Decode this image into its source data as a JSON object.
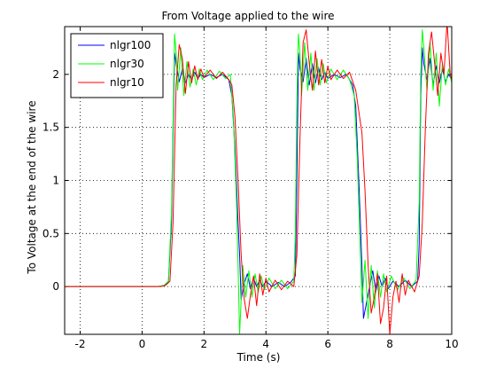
{
  "chart_data": {
    "type": "line",
    "title": "From Voltage applied to the wire",
    "xlabel": "Time (s)",
    "ylabel": "To Voltage at the end of the wire",
    "xlim": [
      -2.5,
      10
    ],
    "ylim": [
      -0.45,
      2.45
    ],
    "xticks": [
      -2,
      0,
      2,
      4,
      6,
      8,
      10
    ],
    "xtick_labels": [
      "-2",
      "0",
      "2",
      "4",
      "6",
      "8",
      "10"
    ],
    "yticks": [
      0,
      0.5,
      1,
      1.5,
      2
    ],
    "ytick_labels": [
      "0",
      "0.5",
      "1",
      "1.5",
      "2"
    ],
    "grid": true,
    "legend_position": "top-left",
    "series": [
      {
        "name": "nlgr100",
        "color": "#0000ff",
        "points": [
          [
            -2.5,
            0
          ],
          [
            0.5,
            0
          ],
          [
            0.7,
            0.01
          ],
          [
            0.85,
            0.04
          ],
          [
            0.95,
            0.6
          ],
          [
            1.05,
            2.2
          ],
          [
            1.1,
            2.1
          ],
          [
            1.2,
            1.93
          ],
          [
            1.3,
            2.05
          ],
          [
            1.4,
            1.92
          ],
          [
            1.5,
            2.0
          ],
          [
            1.6,
            1.95
          ],
          [
            1.7,
            2.02
          ],
          [
            1.8,
            1.96
          ],
          [
            1.9,
            2.0
          ],
          [
            2.0,
            1.97
          ],
          [
            2.2,
            2.0
          ],
          [
            2.4,
            1.97
          ],
          [
            2.6,
            2.0
          ],
          [
            2.8,
            1.95
          ],
          [
            2.9,
            1.8
          ],
          [
            3.0,
            1.3
          ],
          [
            3.1,
            0.6
          ],
          [
            3.15,
            0.3
          ],
          [
            3.2,
            -0.12
          ],
          [
            3.3,
            0.03
          ],
          [
            3.4,
            0.12
          ],
          [
            3.5,
            -0.02
          ],
          [
            3.6,
            0.08
          ],
          [
            3.7,
            0.0
          ],
          [
            3.8,
            0.06
          ],
          [
            3.9,
            0.0
          ],
          [
            4.0,
            0.05
          ],
          [
            4.2,
            0.0
          ],
          [
            4.4,
            0.04
          ],
          [
            4.6,
            0.0
          ],
          [
            4.8,
            0.04
          ],
          [
            4.95,
            0.1
          ],
          [
            5.0,
            1.0
          ],
          [
            5.05,
            2.2
          ],
          [
            5.1,
            2.05
          ],
          [
            5.2,
            1.93
          ],
          [
            5.3,
            2.15
          ],
          [
            5.4,
            1.9
          ],
          [
            5.5,
            2.1
          ],
          [
            5.6,
            1.92
          ],
          [
            5.7,
            2.06
          ],
          [
            5.8,
            1.95
          ],
          [
            5.9,
            2.02
          ],
          [
            6.0,
            1.96
          ],
          [
            6.2,
            2.0
          ],
          [
            6.4,
            1.97
          ],
          [
            6.6,
            2.0
          ],
          [
            6.8,
            1.9
          ],
          [
            6.9,
            1.7
          ],
          [
            7.0,
            1.0
          ],
          [
            7.1,
            0.2
          ],
          [
            7.15,
            -0.3
          ],
          [
            7.25,
            -0.15
          ],
          [
            7.35,
            0.0
          ],
          [
            7.45,
            0.15
          ],
          [
            7.55,
            -0.05
          ],
          [
            7.65,
            0.1
          ],
          [
            7.75,
            0.0
          ],
          [
            7.85,
            0.08
          ],
          [
            7.95,
            -0.02
          ],
          [
            8.1,
            0.05
          ],
          [
            8.3,
            0.0
          ],
          [
            8.5,
            0.06
          ],
          [
            8.7,
            0.0
          ],
          [
            8.9,
            0.05
          ],
          [
            8.95,
            0.4
          ],
          [
            9.0,
            1.8
          ],
          [
            9.05,
            2.25
          ],
          [
            9.1,
            2.1
          ],
          [
            9.2,
            1.95
          ],
          [
            9.3,
            2.15
          ],
          [
            9.4,
            1.9
          ],
          [
            9.5,
            2.08
          ],
          [
            9.6,
            1.92
          ],
          [
            9.7,
            2.05
          ],
          [
            9.8,
            1.93
          ],
          [
            9.9,
            2.0
          ],
          [
            10.0,
            1.95
          ]
        ]
      },
      {
        "name": "nlgr30",
        "color": "#00ff00",
        "points": [
          [
            -2.5,
            0
          ],
          [
            0.5,
            0
          ],
          [
            0.7,
            0.01
          ],
          [
            0.85,
            0.05
          ],
          [
            0.95,
            0.7
          ],
          [
            1.05,
            2.38
          ],
          [
            1.1,
            2.2
          ],
          [
            1.15,
            1.85
          ],
          [
            1.25,
            2.25
          ],
          [
            1.35,
            1.8
          ],
          [
            1.45,
            2.12
          ],
          [
            1.55,
            1.88
          ],
          [
            1.65,
            2.05
          ],
          [
            1.75,
            1.9
          ],
          [
            1.85,
            2.05
          ],
          [
            1.95,
            1.95
          ],
          [
            2.1,
            2.04
          ],
          [
            2.3,
            1.95
          ],
          [
            2.5,
            2.03
          ],
          [
            2.7,
            1.96
          ],
          [
            2.85,
            2.0
          ],
          [
            2.95,
            1.6
          ],
          [
            3.05,
            0.8
          ],
          [
            3.1,
            0.2
          ],
          [
            3.15,
            -0.45
          ],
          [
            3.25,
            0.2
          ],
          [
            3.35,
            -0.1
          ],
          [
            3.45,
            0.15
          ],
          [
            3.55,
            -0.1
          ],
          [
            3.65,
            0.12
          ],
          [
            3.75,
            -0.05
          ],
          [
            3.85,
            0.1
          ],
          [
            3.95,
            -0.03
          ],
          [
            4.1,
            0.08
          ],
          [
            4.3,
            -0.02
          ],
          [
            4.5,
            0.06
          ],
          [
            4.7,
            -0.02
          ],
          [
            4.9,
            0.05
          ],
          [
            4.95,
            0.5
          ],
          [
            5.0,
            1.8
          ],
          [
            5.05,
            2.38
          ],
          [
            5.1,
            2.2
          ],
          [
            5.15,
            1.8
          ],
          [
            5.25,
            2.3
          ],
          [
            5.35,
            1.85
          ],
          [
            5.45,
            2.2
          ],
          [
            5.55,
            1.85
          ],
          [
            5.65,
            2.15
          ],
          [
            5.75,
            1.9
          ],
          [
            5.85,
            2.1
          ],
          [
            5.95,
            1.92
          ],
          [
            6.1,
            2.05
          ],
          [
            6.3,
            1.95
          ],
          [
            6.5,
            2.04
          ],
          [
            6.7,
            1.95
          ],
          [
            6.85,
            1.8
          ],
          [
            6.95,
            1.2
          ],
          [
            7.05,
            0.3
          ],
          [
            7.1,
            -0.15
          ],
          [
            7.2,
            0.25
          ],
          [
            7.3,
            -0.3
          ],
          [
            7.4,
            0.2
          ],
          [
            7.5,
            -0.2
          ],
          [
            7.6,
            0.15
          ],
          [
            7.7,
            -0.1
          ],
          [
            7.8,
            0.12
          ],
          [
            7.9,
            -0.05
          ],
          [
            8.05,
            0.1
          ],
          [
            8.25,
            -0.03
          ],
          [
            8.45,
            0.08
          ],
          [
            8.65,
            -0.02
          ],
          [
            8.85,
            0.06
          ],
          [
            8.95,
            0.8
          ],
          [
            9.0,
            2.0
          ],
          [
            9.05,
            2.42
          ],
          [
            9.1,
            2.25
          ],
          [
            9.2,
            1.85
          ],
          [
            9.3,
            2.3
          ],
          [
            9.4,
            1.85
          ],
          [
            9.5,
            2.2
          ],
          [
            9.6,
            1.7
          ],
          [
            9.7,
            2.1
          ],
          [
            9.8,
            1.9
          ],
          [
            9.9,
            2.05
          ],
          [
            10.0,
            1.92
          ]
        ]
      },
      {
        "name": "nlgr10",
        "color": "#ff0000",
        "points": [
          [
            -2.5,
            0
          ],
          [
            0.6,
            0
          ],
          [
            0.75,
            0.01
          ],
          [
            0.9,
            0.05
          ],
          [
            1.0,
            0.6
          ],
          [
            1.1,
            1.9
          ],
          [
            1.2,
            2.28
          ],
          [
            1.3,
            2.15
          ],
          [
            1.4,
            1.82
          ],
          [
            1.5,
            2.12
          ],
          [
            1.6,
            1.92
          ],
          [
            1.7,
            2.08
          ],
          [
            1.8,
            1.95
          ],
          [
            1.9,
            2.05
          ],
          [
            2.0,
            1.97
          ],
          [
            2.2,
            2.04
          ],
          [
            2.4,
            1.96
          ],
          [
            2.6,
            2.02
          ],
          [
            2.8,
            1.95
          ],
          [
            2.9,
            1.9
          ],
          [
            3.0,
            1.6
          ],
          [
            3.1,
            1.0
          ],
          [
            3.2,
            0.3
          ],
          [
            3.3,
            -0.12
          ],
          [
            3.4,
            -0.3
          ],
          [
            3.5,
            -0.08
          ],
          [
            3.6,
            0.1
          ],
          [
            3.7,
            -0.18
          ],
          [
            3.8,
            0.12
          ],
          [
            3.9,
            -0.08
          ],
          [
            4.0,
            0.08
          ],
          [
            4.1,
            -0.05
          ],
          [
            4.3,
            0.06
          ],
          [
            4.5,
            -0.03
          ],
          [
            4.7,
            0.05
          ],
          [
            4.9,
            0.0
          ],
          [
            5.0,
            0.3
          ],
          [
            5.1,
            1.4
          ],
          [
            5.2,
            2.3
          ],
          [
            5.3,
            2.42
          ],
          [
            5.4,
            2.1
          ],
          [
            5.5,
            1.85
          ],
          [
            5.6,
            2.22
          ],
          [
            5.7,
            1.9
          ],
          [
            5.8,
            2.14
          ],
          [
            5.9,
            1.92
          ],
          [
            6.0,
            2.08
          ],
          [
            6.1,
            1.95
          ],
          [
            6.3,
            2.04
          ],
          [
            6.5,
            1.96
          ],
          [
            6.7,
            2.02
          ],
          [
            6.9,
            1.85
          ],
          [
            7.0,
            1.65
          ],
          [
            7.1,
            1.45
          ],
          [
            7.2,
            0.9
          ],
          [
            7.3,
            0.2
          ],
          [
            7.4,
            -0.25
          ],
          [
            7.5,
            -0.1
          ],
          [
            7.6,
            0.12
          ],
          [
            7.7,
            -0.35
          ],
          [
            7.8,
            -0.2
          ],
          [
            7.9,
            0.1
          ],
          [
            8.0,
            -0.45
          ],
          [
            8.1,
            -0.1
          ],
          [
            8.2,
            0.05
          ],
          [
            8.3,
            -0.15
          ],
          [
            8.4,
            0.12
          ],
          [
            8.5,
            -0.08
          ],
          [
            8.6,
            0.06
          ],
          [
            8.8,
            -0.05
          ],
          [
            8.95,
            0.1
          ],
          [
            9.05,
            0.6
          ],
          [
            9.15,
            1.5
          ],
          [
            9.25,
            2.2
          ],
          [
            9.35,
            2.4
          ],
          [
            9.45,
            2.1
          ],
          [
            9.55,
            1.8
          ],
          [
            9.65,
            2.2
          ],
          [
            9.75,
            2.0
          ],
          [
            9.85,
            2.5
          ],
          [
            9.95,
            2.0
          ],
          [
            10.0,
            1.95
          ]
        ]
      }
    ]
  }
}
